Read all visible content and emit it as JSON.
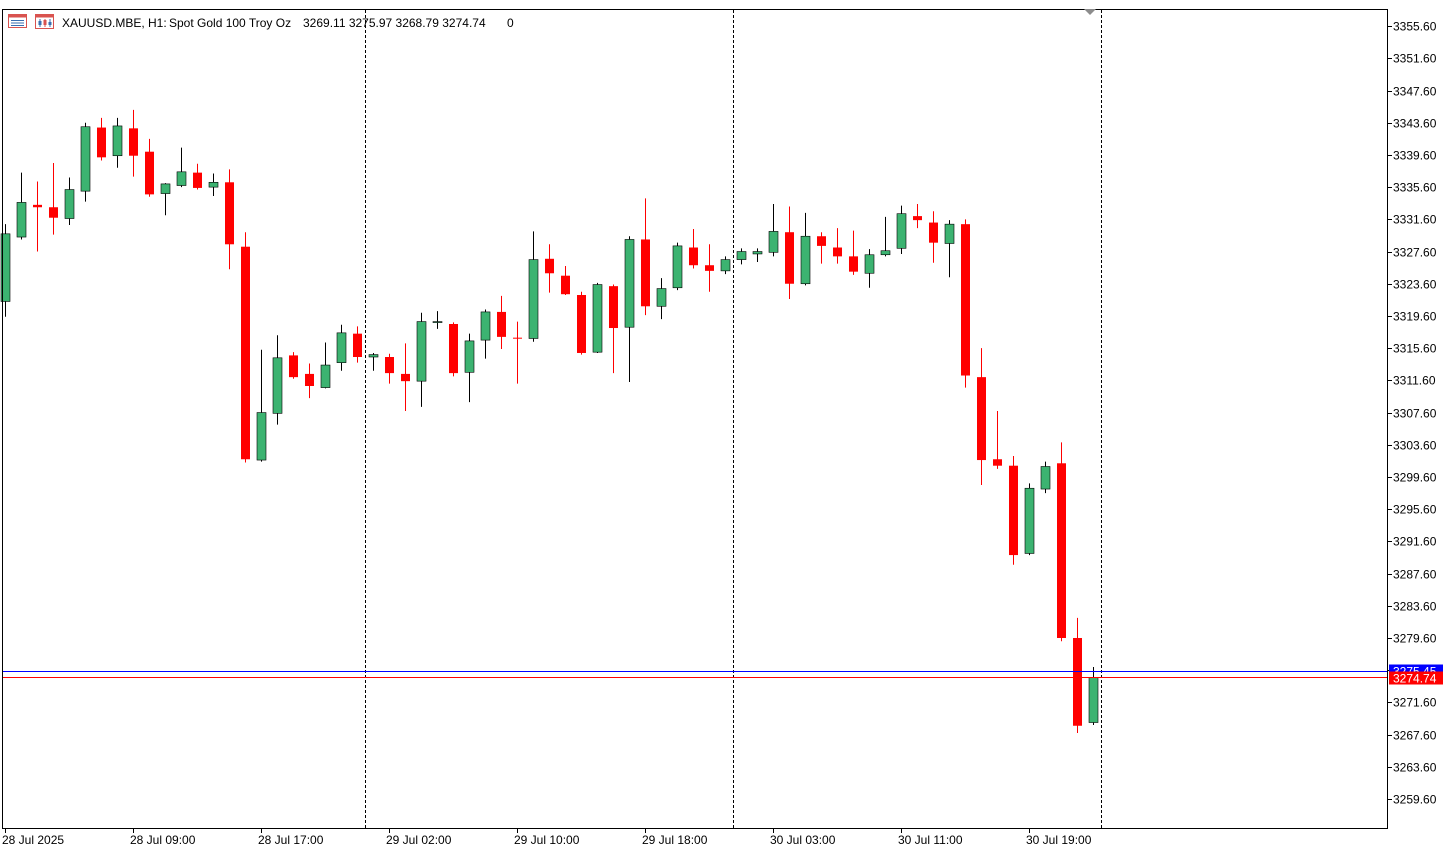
{
  "header": {
    "symbol": "XAUUSD.MBE, H1:",
    "description": "Spot Gold 100 Troy Oz",
    "ohlc": "3269.11 3275.97 3268.79 3274.74",
    "volume": "0",
    "icon_names": [
      "price-table-icon",
      "chart-window-icon"
    ]
  },
  "colors": {
    "bull": "#3cb371",
    "bear": "#ff0000",
    "bid_line": "#ff0000",
    "ask_line": "#0000ff",
    "grid": "#000000",
    "background": "#ffffff"
  },
  "price_tags": {
    "bid": "3274.74",
    "ask": "3275.45"
  },
  "chart_data": {
    "type": "candlestick",
    "symbol": "XAUUSD.MBE",
    "timeframe": "H1",
    "ylim": [
      3256.0,
      3357.6
    ],
    "y_ticks": [
      "3355.60",
      "3351.60",
      "3347.60",
      "3343.60",
      "3339.60",
      "3335.60",
      "3331.60",
      "3327.60",
      "3323.60",
      "3319.60",
      "3315.60",
      "3311.60",
      "3307.60",
      "3303.60",
      "3299.60",
      "3295.60",
      "3291.60",
      "3287.60",
      "3283.60",
      "3279.60",
      "3275.60",
      "3271.60",
      "3267.60",
      "3263.60",
      "3259.60"
    ],
    "x_labels": [
      {
        "index": 0,
        "label": "28 Jul 2025"
      },
      {
        "index": 8,
        "label": "28 Jul 09:00"
      },
      {
        "index": 16,
        "label": "28 Jul 17:00"
      },
      {
        "index": 24,
        "label": "29 Jul 02:00"
      },
      {
        "index": 32,
        "label": "29 Jul 10:00"
      },
      {
        "index": 40,
        "label": "29 Jul 18:00"
      },
      {
        "index": 48,
        "label": "30 Jul 03:00"
      },
      {
        "index": 56,
        "label": "30 Jul 11:00"
      },
      {
        "index": 64,
        "label": "30 Jul 19:00"
      }
    ],
    "separators_after_index": [
      22,
      45,
      68
    ],
    "bid": 3274.74,
    "ask": 3275.45,
    "candles": [
      {
        "o": 3321.4,
        "h": 3331.0,
        "l": 3319.5,
        "c": 3329.8
      },
      {
        "o": 3329.4,
        "h": 3337.4,
        "l": 3329.1,
        "c": 3333.7
      },
      {
        "o": 3333.4,
        "h": 3336.3,
        "l": 3327.6,
        "c": 3333.1
      },
      {
        "o": 3333.1,
        "h": 3338.6,
        "l": 3329.7,
        "c": 3331.8
      },
      {
        "o": 3331.7,
        "h": 3336.8,
        "l": 3330.9,
        "c": 3335.3
      },
      {
        "o": 3335.1,
        "h": 3343.6,
        "l": 3333.8,
        "c": 3343.1
      },
      {
        "o": 3343.0,
        "h": 3344.2,
        "l": 3338.9,
        "c": 3339.3
      },
      {
        "o": 3339.5,
        "h": 3344.2,
        "l": 3338.0,
        "c": 3343.2
      },
      {
        "o": 3342.9,
        "h": 3345.2,
        "l": 3336.9,
        "c": 3339.5
      },
      {
        "o": 3340.0,
        "h": 3341.6,
        "l": 3334.4,
        "c": 3334.7
      },
      {
        "o": 3334.8,
        "h": 3336.1,
        "l": 3332.1,
        "c": 3336.0
      },
      {
        "o": 3335.8,
        "h": 3340.5,
        "l": 3335.6,
        "c": 3337.5
      },
      {
        "o": 3337.4,
        "h": 3338.5,
        "l": 3335.3,
        "c": 3335.5
      },
      {
        "o": 3335.6,
        "h": 3337.3,
        "l": 3334.5,
        "c": 3336.2
      },
      {
        "o": 3336.2,
        "h": 3337.8,
        "l": 3325.4,
        "c": 3328.5
      },
      {
        "o": 3328.2,
        "h": 3330.0,
        "l": 3301.4,
        "c": 3301.8
      },
      {
        "o": 3301.7,
        "h": 3315.4,
        "l": 3301.5,
        "c": 3307.6
      },
      {
        "o": 3307.5,
        "h": 3317.2,
        "l": 3306.1,
        "c": 3314.4
      },
      {
        "o": 3314.7,
        "h": 3315.1,
        "l": 3311.8,
        "c": 3312.0
      },
      {
        "o": 3312.4,
        "h": 3313.7,
        "l": 3309.4,
        "c": 3310.9
      },
      {
        "o": 3310.7,
        "h": 3316.3,
        "l": 3310.6,
        "c": 3313.5
      },
      {
        "o": 3313.8,
        "h": 3318.5,
        "l": 3312.8,
        "c": 3317.5
      },
      {
        "o": 3317.4,
        "h": 3318.3,
        "l": 3313.8,
        "c": 3314.5
      },
      {
        "o": 3314.5,
        "h": 3315.0,
        "l": 3312.8,
        "c": 3314.8
      },
      {
        "o": 3314.5,
        "h": 3314.9,
        "l": 3311.2,
        "c": 3312.5
      },
      {
        "o": 3312.4,
        "h": 3316.2,
        "l": 3307.8,
        "c": 3311.5
      },
      {
        "o": 3311.5,
        "h": 3320.0,
        "l": 3308.3,
        "c": 3318.9
      },
      {
        "o": 3318.9,
        "h": 3320.2,
        "l": 3318.0,
        "c": 3318.9
      },
      {
        "o": 3318.6,
        "h": 3318.8,
        "l": 3312.1,
        "c": 3312.5
      },
      {
        "o": 3312.6,
        "h": 3317.4,
        "l": 3308.9,
        "c": 3316.5
      },
      {
        "o": 3316.6,
        "h": 3320.4,
        "l": 3314.3,
        "c": 3320.1
      },
      {
        "o": 3320.1,
        "h": 3322.1,
        "l": 3315.5,
        "c": 3317.0
      },
      {
        "o": 3316.9,
        "h": 3318.9,
        "l": 3311.2,
        "c": 3316.8
      },
      {
        "o": 3316.8,
        "h": 3330.1,
        "l": 3316.4,
        "c": 3326.6
      },
      {
        "o": 3326.7,
        "h": 3328.5,
        "l": 3322.5,
        "c": 3324.9
      },
      {
        "o": 3324.6,
        "h": 3325.8,
        "l": 3322.2,
        "c": 3322.3
      },
      {
        "o": 3322.2,
        "h": 3322.6,
        "l": 3314.8,
        "c": 3315.0
      },
      {
        "o": 3315.1,
        "h": 3323.7,
        "l": 3315.0,
        "c": 3323.5
      },
      {
        "o": 3323.3,
        "h": 3323.5,
        "l": 3312.5,
        "c": 3318.1
      },
      {
        "o": 3318.2,
        "h": 3329.5,
        "l": 3311.4,
        "c": 3329.1
      },
      {
        "o": 3329.1,
        "h": 3334.2,
        "l": 3319.7,
        "c": 3320.8
      },
      {
        "o": 3320.8,
        "h": 3324.3,
        "l": 3319.2,
        "c": 3323.0
      },
      {
        "o": 3323.1,
        "h": 3328.7,
        "l": 3322.8,
        "c": 3328.3
      },
      {
        "o": 3328.1,
        "h": 3330.4,
        "l": 3325.5,
        "c": 3325.9
      },
      {
        "o": 3325.9,
        "h": 3328.5,
        "l": 3322.6,
        "c": 3325.2
      },
      {
        "o": 3325.2,
        "h": 3327.0,
        "l": 3324.8,
        "c": 3326.6
      },
      {
        "o": 3326.6,
        "h": 3328.0,
        "l": 3326.0,
        "c": 3327.6
      },
      {
        "o": 3327.3,
        "h": 3328.0,
        "l": 3326.3,
        "c": 3327.6
      },
      {
        "o": 3327.5,
        "h": 3333.5,
        "l": 3327.0,
        "c": 3330.1
      },
      {
        "o": 3330.0,
        "h": 3333.2,
        "l": 3321.7,
        "c": 3323.6
      },
      {
        "o": 3323.6,
        "h": 3332.4,
        "l": 3323.4,
        "c": 3329.5
      },
      {
        "o": 3329.5,
        "h": 3330.0,
        "l": 3326.1,
        "c": 3328.3
      },
      {
        "o": 3328.1,
        "h": 3330.5,
        "l": 3326.1,
        "c": 3327.0
      },
      {
        "o": 3327.0,
        "h": 3330.2,
        "l": 3324.7,
        "c": 3325.1
      },
      {
        "o": 3324.9,
        "h": 3327.9,
        "l": 3323.1,
        "c": 3327.2
      },
      {
        "o": 3327.2,
        "h": 3331.9,
        "l": 3327.0,
        "c": 3327.7
      },
      {
        "o": 3328.0,
        "h": 3333.3,
        "l": 3327.3,
        "c": 3332.3
      },
      {
        "o": 3332.0,
        "h": 3333.5,
        "l": 3330.5,
        "c": 3331.5
      },
      {
        "o": 3331.2,
        "h": 3332.6,
        "l": 3326.2,
        "c": 3328.7
      },
      {
        "o": 3328.6,
        "h": 3331.5,
        "l": 3324.4,
        "c": 3331.0
      },
      {
        "o": 3331.0,
        "h": 3331.6,
        "l": 3310.7,
        "c": 3312.2
      },
      {
        "o": 3312.0,
        "h": 3315.6,
        "l": 3298.6,
        "c": 3301.7
      },
      {
        "o": 3301.8,
        "h": 3307.8,
        "l": 3300.6,
        "c": 3301.0
      },
      {
        "o": 3301.0,
        "h": 3302.2,
        "l": 3288.7,
        "c": 3289.9
      },
      {
        "o": 3290.1,
        "h": 3298.8,
        "l": 3289.9,
        "c": 3298.2
      },
      {
        "o": 3298.1,
        "h": 3301.5,
        "l": 3297.6,
        "c": 3300.9
      },
      {
        "o": 3301.3,
        "h": 3303.9,
        "l": 3279.2,
        "c": 3279.6
      },
      {
        "o": 3279.6,
        "h": 3282.1,
        "l": 3267.8,
        "c": 3268.7
      },
      {
        "o": 3269.1,
        "h": 3276.0,
        "l": 3268.8,
        "c": 3274.7
      }
    ]
  }
}
